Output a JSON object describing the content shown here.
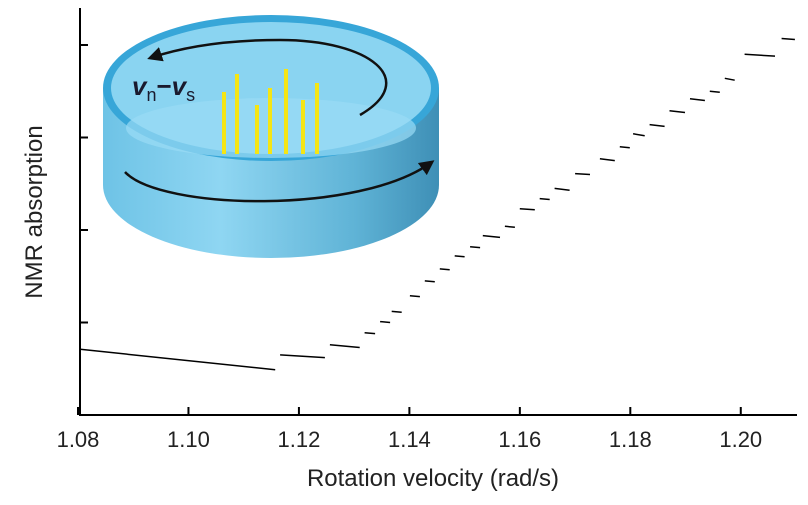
{
  "chart_data": {
    "type": "line",
    "xlabel": "Rotation velocity  (rad/s)",
    "ylabel": "NMR absorption",
    "annotation": {
      "main1": "v",
      "sub1": "n",
      "op": "−",
      "main2": "v",
      "sub2": "s"
    },
    "color": "#000000",
    "xlim": [
      1.08,
      1.21
    ],
    "xticks": [
      1.08,
      {
        "value": 1.1,
        "label": "1.10"
      },
      1.12,
      1.14,
      1.16,
      1.18,
      {
        "value": 1.2,
        "label": "1.20"
      }
    ],
    "ylim": [
      0,
      4.4
    ],
    "yticks": [
      1,
      2,
      3,
      4
    ],
    "x": [
      1.0804,
      1.1157,
      null,
      1.1166,
      1.1247,
      null,
      1.1256,
      1.131,
      null,
      1.1319,
      1.1338,
      null,
      1.1347,
      1.1365,
      null,
      1.1368,
      1.1386,
      null,
      1.1401,
      1.1419,
      null,
      1.1428,
      1.1446,
      null,
      1.1455,
      1.1473,
      null,
      1.1482,
      1.15,
      null,
      1.151,
      1.1528,
      null,
      1.1533,
      1.1564,
      null,
      1.1573,
      1.1591,
      null,
      1.16,
      1.1627,
      null,
      1.1636,
      1.1654,
      null,
      1.1663,
      1.169,
      null,
      1.17,
      1.1727,
      null,
      1.1745,
      1.1772,
      null,
      1.1781,
      1.1799,
      null,
      1.1805,
      1.1826,
      null,
      1.1835,
      1.1862,
      null,
      1.1871,
      1.1899,
      null,
      1.1908,
      1.1935,
      null,
      1.1944,
      1.1962,
      null,
      1.1971,
      1.1989,
      null,
      1.2007,
      1.2062,
      null,
      1.2074,
      1.2098
    ],
    "values": [
      0.71,
      0.49,
      null,
      0.65,
      0.62,
      null,
      0.76,
      0.73,
      null,
      0.89,
      0.88,
      null,
      1.01,
      1.0,
      null,
      1.12,
      1.11,
      null,
      1.29,
      1.28,
      null,
      1.45,
      1.44,
      null,
      1.58,
      1.57,
      null,
      1.72,
      1.71,
      null,
      1.82,
      1.81,
      null,
      1.94,
      1.92,
      null,
      2.04,
      2.03,
      null,
      2.23,
      2.22,
      null,
      2.34,
      2.33,
      null,
      2.45,
      2.43,
      null,
      2.61,
      2.6,
      null,
      2.77,
      2.75,
      null,
      2.9,
      2.89,
      null,
      3.04,
      3.02,
      null,
      3.14,
      3.12,
      null,
      3.29,
      3.27,
      null,
      3.42,
      3.4,
      null,
      3.5,
      3.49,
      null,
      3.64,
      3.62,
      null,
      3.9,
      3.88,
      null,
      4.07,
      4.06
    ]
  }
}
